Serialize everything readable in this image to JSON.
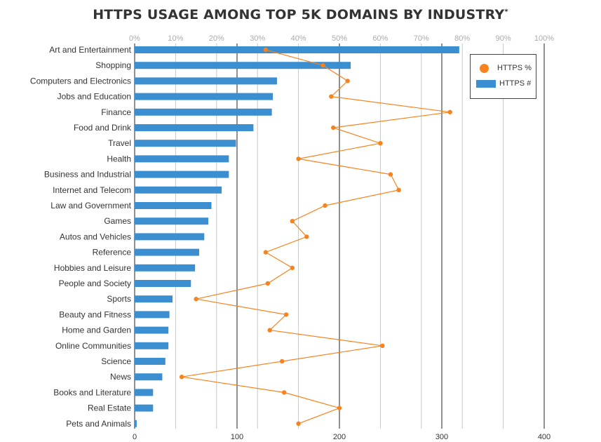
{
  "chart_data": {
    "type": "bar",
    "title": "HTTPS USAGE AMONG TOP 5K DOMAINS BY INDUSTRY",
    "title_mark": "*",
    "orientation": "horizontal",
    "categories": [
      "Art and Entertainment",
      "Shopping",
      "Computers and Electronics",
      "Jobs and Education",
      "Finance",
      "Food and Drink",
      "Travel",
      "Health",
      "Business and Industrial",
      "Internet and Telecom",
      "Law and Government",
      "Games",
      "Autos and Vehicles",
      "Reference",
      "Hobbies and Leisure",
      "People and Society",
      "Sports",
      "Beauty and Fitness",
      "Home and Garden",
      "Online Communities",
      "Science",
      "News",
      "Books and Literature",
      "Real Estate",
      "Pets and Animals"
    ],
    "series": [
      {
        "name": "HTTPS #",
        "type": "bar",
        "axis": "bottom",
        "color": "#3b8fd1",
        "values": [
          317,
          211,
          139,
          135,
          134,
          116,
          99,
          92,
          92,
          85,
          75,
          72,
          68,
          63,
          59,
          55,
          37,
          34,
          33,
          33,
          30,
          27,
          18,
          18,
          2
        ]
      },
      {
        "name": "HTTPS %",
        "type": "line",
        "axis": "top",
        "color": "#f7831f",
        "values": [
          32,
          46,
          52,
          48,
          77,
          48.5,
          60,
          40,
          62.5,
          64.5,
          46.5,
          38.5,
          42,
          32,
          38.5,
          32.5,
          15,
          37,
          33,
          60.5,
          36,
          11.5,
          36.5,
          50,
          40
        ]
      }
    ],
    "x_bottom": {
      "ticks": [
        "0",
        "100",
        "200",
        "300",
        "400"
      ],
      "range": [
        0,
        400
      ]
    },
    "x_top": {
      "ticks": [
        "0%",
        "10%",
        "20%",
        "30%",
        "40%",
        "50%",
        "60%",
        "70%",
        "80%",
        "90%",
        "100%"
      ],
      "range": [
        0,
        100
      ]
    },
    "grid": true,
    "legend": {
      "position": "top-right",
      "items": [
        "HTTPS %",
        "HTTPS #"
      ]
    }
  }
}
